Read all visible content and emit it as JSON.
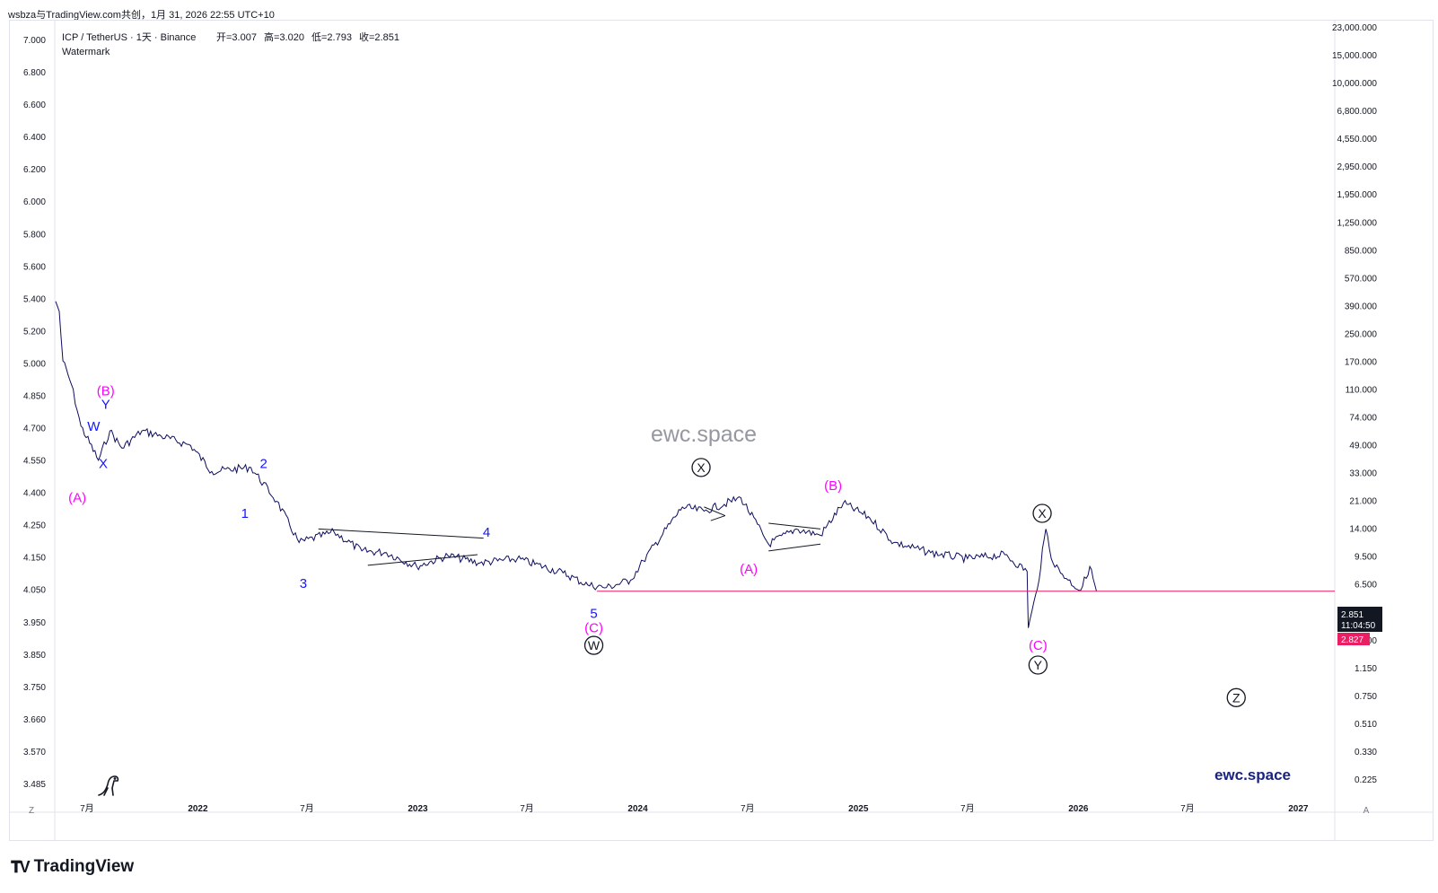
{
  "header": {
    "note": "wsbza与TradingView.com共创，1月 31, 2026 22:55 UTC+10"
  },
  "legend": {
    "symbol": "ICP / TetherUS · 1天 · Binance",
    "open": "开=3.007",
    "high": "高=3.020",
    "low": "低=2.793",
    "close": "收=2.851",
    "watermark_line": "Watermark"
  },
  "watermark": {
    "center": "ewc.space",
    "corner": "ewc.space"
  },
  "brand": {
    "name": "TradingView"
  },
  "colors": {
    "candles": "#0d0d5e",
    "hline": "#e91e63",
    "blue_label": "#1515ff",
    "magenta_label": "#ff00ff",
    "price_box": "#131722",
    "alt_box": "#e91e63"
  },
  "chart_data": {
    "type": "line",
    "title": "ICP / TetherUS · 1天 · Binance",
    "x_axis": {
      "ticks": [
        "7月",
        "2022",
        "7月",
        "2023",
        "7月",
        "2024",
        "7月",
        "2025",
        "7月",
        "2026",
        "7月",
        "2027"
      ],
      "range": [
        "2021-05-10",
        "2027-03-01"
      ]
    },
    "left_axis": {
      "ticks": [
        "7.000",
        "6.800",
        "6.600",
        "6.400",
        "6.200",
        "6.000",
        "5.800",
        "5.600",
        "5.400",
        "5.200",
        "5.000",
        "4.850",
        "4.700",
        "4.550",
        "4.400",
        "4.250",
        "4.150",
        "4.050",
        "3.950",
        "3.850",
        "3.750",
        "3.660",
        "3.570",
        "3.485"
      ]
    },
    "right_axis": {
      "ticks": [
        "23,000.000",
        "15,000.000",
        "10,000.000",
        "6,800.000",
        "4,550.000",
        "2,950.000",
        "1,950.000",
        "1,250.000",
        "850.000",
        "570.000",
        "390.000",
        "250.000",
        "170.000",
        "110.000",
        "74.000",
        "49.000",
        "33.000",
        "21.000",
        "14.000",
        "9.500",
        "6.500",
        "4.000",
        "1.700",
        "1.150",
        "0.750",
        "0.510",
        "0.330",
        "0.225"
      ],
      "scale": "log"
    },
    "series": [
      {
        "x": [
          "2021-05-10",
          "2021-05-16",
          "2021-05-22",
          "2021-06-05",
          "2021-06-21",
          "2021-07-20",
          "2021-08-08",
          "2021-08-28",
          "2021-09-30",
          "2021-11-01",
          "2021-12-20",
          "2022-01-24",
          "2022-03-30",
          "2022-05-12",
          "2022-06-18",
          "2022-08-15",
          "2022-09-30",
          "2022-11-10",
          "2022-12-30",
          "2023-02-20",
          "2023-04-14",
          "2023-06-15",
          "2023-08-30",
          "2023-10-10",
          "2023-11-10",
          "2023-12-20",
          "2024-01-10",
          "2024-03-15",
          "2024-04-20",
          "2024-06-20",
          "2024-08-05",
          "2024-09-20",
          "2024-10-30",
          "2024-12-07",
          "2025-01-20",
          "2025-03-01",
          "2025-05-01",
          "2025-07-01",
          "2025-09-01",
          "2025-10-08",
          "2025-10-10",
          "2025-10-25",
          "2025-11-08",
          "2025-11-20",
          "2025-12-15",
          "2026-01-05",
          "2026-01-20",
          "2026-01-31"
        ],
        "y": [
          600,
          500,
          200,
          130,
          60,
          32,
          55,
          40,
          55,
          50,
          42,
          26,
          28,
          15,
          7,
          8.5,
          6.0,
          5.8,
          4.5,
          5.5,
          4.8,
          5.2,
          4.0,
          3.2,
          3.05,
          3.5,
          5.0,
          13.5,
          12.5,
          16,
          6.8,
          9.0,
          8.0,
          14.5,
          11,
          7.0,
          5.8,
          5.2,
          5.6,
          4.1,
          1.45,
          3.0,
          9.0,
          4.8,
          3.5,
          2.9,
          4.5,
          2.851
        ]
      }
    ],
    "current_price": {
      "value": 2.851,
      "label": "2.851",
      "countdown": "11:04:50"
    },
    "alt_price": {
      "value": 2.827,
      "label": "2.827"
    },
    "annotations": [
      {
        "text": "W",
        "x": "2021-07-12",
        "y": 60,
        "style": "blue"
      },
      {
        "text": "Y",
        "x": "2021-08-01",
        "y": 90,
        "style": "blue"
      },
      {
        "text": "(B)",
        "x": "2021-08-01",
        "y": 115,
        "style": "magenta"
      },
      {
        "text": "X",
        "x": "2021-07-28",
        "y": 30,
        "style": "blue"
      },
      {
        "text": "(A)",
        "x": "2021-06-15",
        "y": 16,
        "style": "magenta"
      },
      {
        "text": "2",
        "x": "2022-04-20",
        "y": 30,
        "style": "blue"
      },
      {
        "text": "1",
        "x": "2022-03-20",
        "y": 12,
        "style": "blue"
      },
      {
        "text": "3",
        "x": "2022-06-25",
        "y": 3.3,
        "style": "blue"
      },
      {
        "text": "4",
        "x": "2023-04-25",
        "y": 8.5,
        "style": "blue"
      },
      {
        "text": "5",
        "x": "2023-10-20",
        "y": 1.9,
        "style": "blue"
      },
      {
        "text": "(C)",
        "x": "2023-10-20",
        "y": 1.45,
        "style": "magenta"
      },
      {
        "text": "W",
        "x": "2023-10-20",
        "y": 1.05,
        "style": "circle"
      },
      {
        "text": "X",
        "x": "2024-04-15",
        "y": 28,
        "style": "circle"
      },
      {
        "text": "(B)",
        "x": "2024-11-20",
        "y": 20,
        "style": "magenta"
      },
      {
        "text": "(A)",
        "x": "2024-07-03",
        "y": 4.3,
        "style": "magenta"
      },
      {
        "text": "X",
        "x": "2025-11-02",
        "y": 12,
        "style": "circle"
      },
      {
        "text": "(C)",
        "x": "2025-10-26",
        "y": 1.05,
        "style": "magenta"
      },
      {
        "text": "Y",
        "x": "2025-10-26",
        "y": 0.73,
        "style": "circle"
      },
      {
        "text": "Z",
        "x": "2026-09-20",
        "y": 0.4,
        "style": "circle"
      }
    ],
    "trendlines": [
      {
        "x1": "2022-07-20",
        "y1": 9.0,
        "x2": "2023-04-20",
        "y2": 7.6
      },
      {
        "x1": "2022-10-10",
        "y1": 4.6,
        "x2": "2023-04-10",
        "y2": 5.6
      },
      {
        "x1": "2024-04-20",
        "y1": 13.5,
        "x2": "2024-05-25",
        "y2": 11.5
      },
      {
        "x1": "2024-05-01",
        "y1": 10.5,
        "x2": "2024-05-25",
        "y2": 11.5
      },
      {
        "x1": "2024-08-05",
        "y1": 10.0,
        "x2": "2024-10-30",
        "y2": 9.0
      },
      {
        "x1": "2024-08-05",
        "y1": 6.0,
        "x2": "2024-10-30",
        "y2": 6.8
      }
    ]
  }
}
